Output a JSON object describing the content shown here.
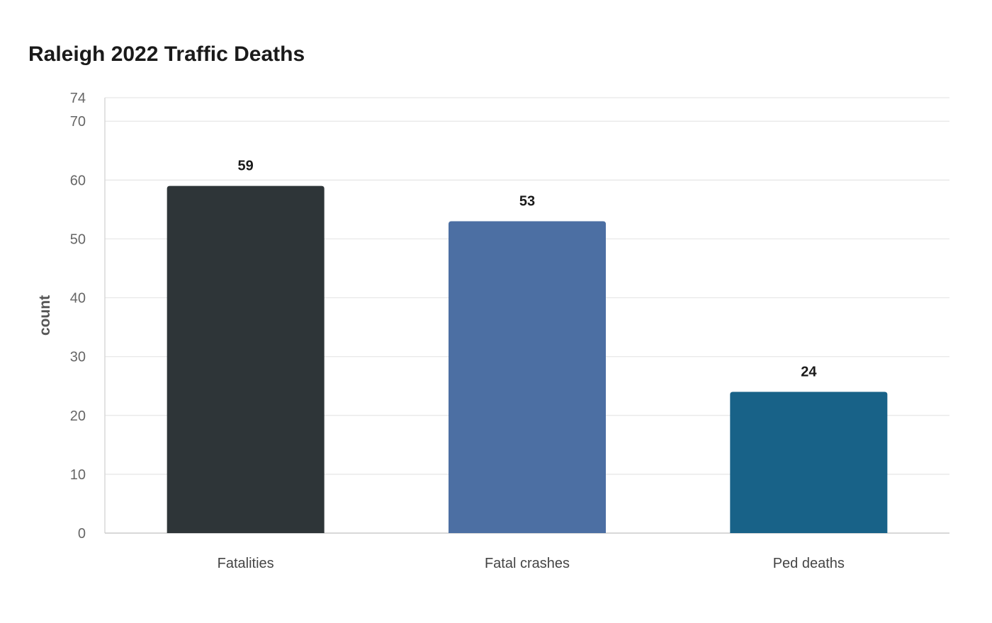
{
  "chart_data": {
    "type": "bar",
    "title": "Raleigh 2022 Traffic Deaths",
    "xlabel": "",
    "ylabel": "count",
    "categories": [
      "Fatalities",
      "Fatal crashes",
      "Ped deaths"
    ],
    "values": [
      59,
      53,
      24
    ],
    "colors": [
      "#2e3538",
      "#4c6fa3",
      "#186288"
    ],
    "ylim": [
      0,
      74
    ],
    "yticks": [
      0,
      10,
      20,
      30,
      40,
      50,
      60,
      70,
      74
    ],
    "grid": true,
    "legend": "none"
  }
}
